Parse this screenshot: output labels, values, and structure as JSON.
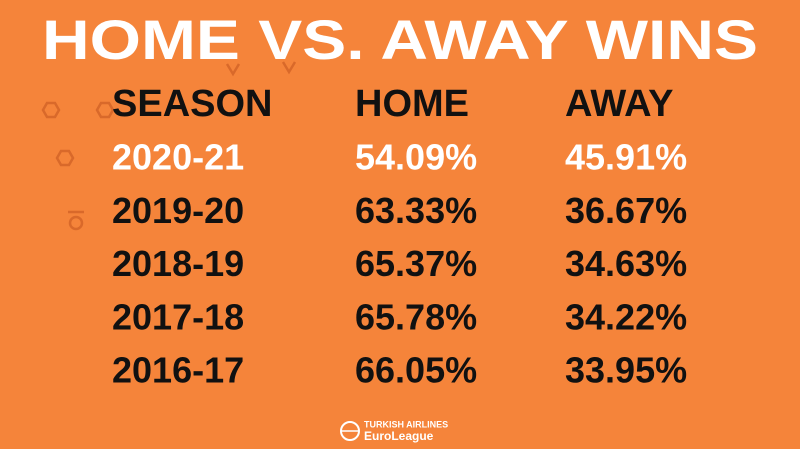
{
  "header": {
    "title": "HOME VS. AWAY WINS"
  },
  "table": {
    "columns": [
      "SEASON",
      "HOME",
      "AWAY"
    ],
    "rows": [
      [
        "2020-21",
        "54.09%",
        "45.91%"
      ],
      [
        "2019-20",
        "63.33%",
        "36.67%"
      ],
      [
        "2018-19",
        "65.37%",
        "34.63%"
      ],
      [
        "2017-18",
        "65.78%",
        "34.22%"
      ],
      [
        "2016-17",
        "66.05%",
        "33.95%"
      ]
    ]
  },
  "footer": {
    "brand": "TURKISH AIRLINES",
    "league": "EuroLeague"
  }
}
